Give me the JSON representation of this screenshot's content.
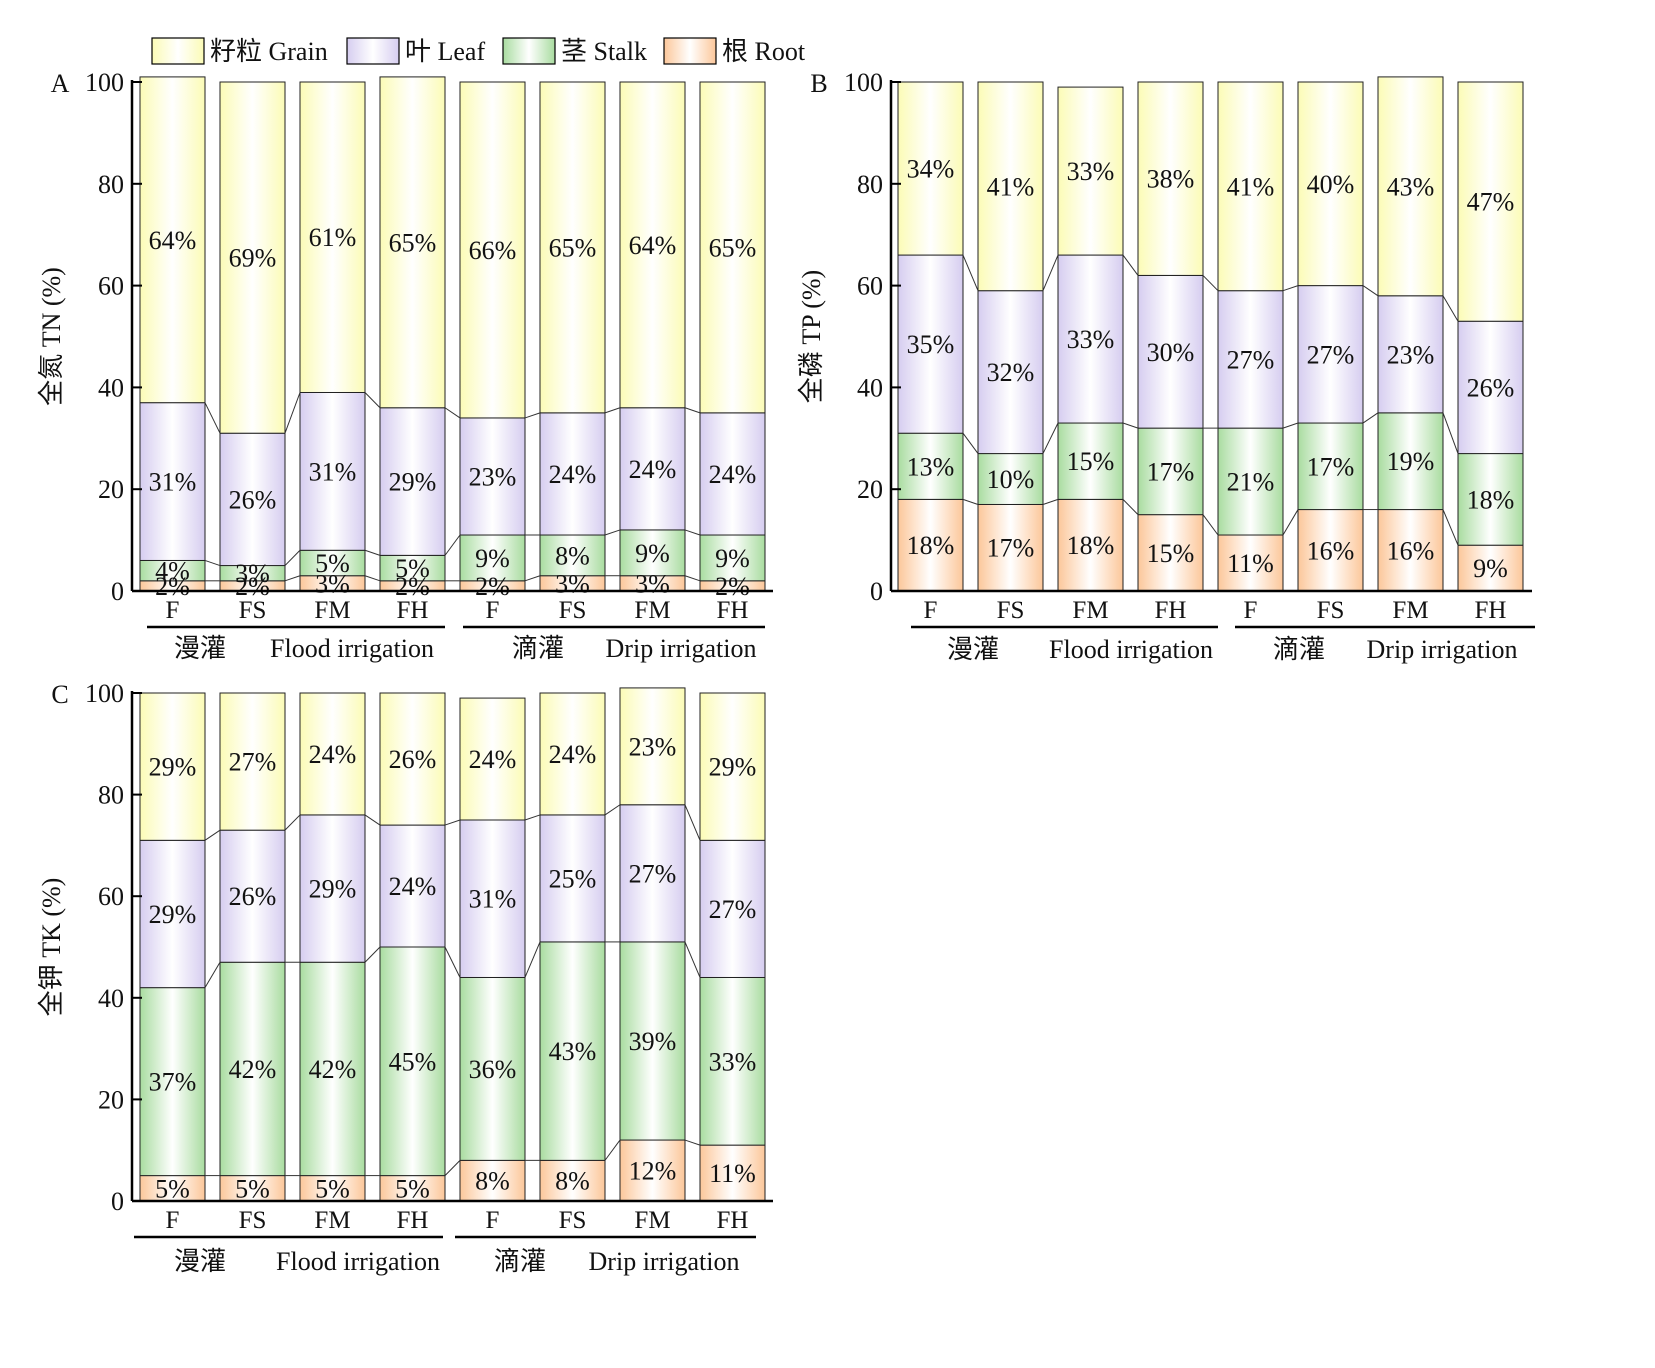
{
  "chart_data": [
    {
      "type": "bar",
      "stacked": true,
      "panel": "A",
      "ylabel": "全氮 TN (%)",
      "ylim": [
        0,
        100
      ],
      "yticks": [
        0,
        20,
        40,
        60,
        80,
        100
      ],
      "categories": [
        "F",
        "FS",
        "FM",
        "FH",
        "F",
        "FS",
        "FM",
        "FH"
      ],
      "groups": [
        {
          "name_cn": "漫灌",
          "name_en": "Flood irrigation",
          "categories": [
            0,
            1,
            2,
            3
          ]
        },
        {
          "name_cn": "滴灌",
          "name_en": "Drip irrigation",
          "categories": [
            4,
            5,
            6,
            7
          ]
        }
      ],
      "series": [
        {
          "name": "根 Root",
          "values": [
            2,
            2,
            3,
            2,
            2,
            3,
            3,
            2
          ],
          "labels": [
            "2%",
            "2%",
            "3%",
            "2%",
            "2%",
            "3%",
            "3%",
            "2%"
          ]
        },
        {
          "name": "茎 Stalk",
          "values": [
            4,
            3,
            5,
            5,
            9,
            8,
            9,
            9
          ],
          "labels": [
            "4%",
            "3%",
            "5%",
            "5%",
            "9%",
            "8%",
            "9%",
            "9%"
          ]
        },
        {
          "name": "叶 Leaf",
          "values": [
            31,
            26,
            31,
            29,
            23,
            24,
            24,
            24
          ],
          "labels": [
            "31%",
            "26%",
            "31%",
            "29%",
            "23%",
            "24%",
            "24%",
            "24%"
          ]
        },
        {
          "name": "籽粒 Grain",
          "values": [
            64,
            69,
            61,
            65,
            66,
            65,
            64,
            65
          ],
          "labels": [
            "64%",
            "69%",
            "61%",
            "65%",
            "66%",
            "65%",
            "64%",
            "65%"
          ]
        }
      ]
    },
    {
      "type": "bar",
      "stacked": true,
      "panel": "B",
      "ylabel": "全磷 TP (%)",
      "ylim": [
        0,
        100
      ],
      "yticks": [
        0,
        20,
        40,
        60,
        80,
        100
      ],
      "categories": [
        "F",
        "FS",
        "FM",
        "FH",
        "F",
        "FS",
        "FM",
        "FH"
      ],
      "groups": [
        {
          "name_cn": "漫灌",
          "name_en": "Flood irrigation",
          "categories": [
            0,
            1,
            2,
            3
          ]
        },
        {
          "name_cn": "滴灌",
          "name_en": "Drip irrigation",
          "categories": [
            4,
            5,
            6,
            7
          ]
        }
      ],
      "series": [
        {
          "name": "根 Root",
          "values": [
            18,
            17,
            18,
            15,
            11,
            16,
            16,
            9
          ],
          "labels": [
            "18%",
            "17%",
            "18%",
            "15%",
            "11%",
            "16%",
            "16%",
            "9%"
          ]
        },
        {
          "name": "茎 Stalk",
          "values": [
            13,
            10,
            15,
            17,
            21,
            17,
            19,
            18
          ],
          "labels": [
            "13%",
            "10%",
            "15%",
            "17%",
            "21%",
            "17%",
            "19%",
            "18%"
          ]
        },
        {
          "name": "叶 Leaf",
          "values": [
            35,
            32,
            33,
            30,
            27,
            27,
            23,
            26
          ],
          "labels": [
            "35%",
            "32%",
            "33%",
            "30%",
            "27%",
            "27%",
            "23%",
            "26%"
          ]
        },
        {
          "name": "籽粒 Grain",
          "values": [
            34,
            41,
            33,
            38,
            41,
            40,
            43,
            47
          ],
          "labels": [
            "34%",
            "41%",
            "33%",
            "38%",
            "41%",
            "40%",
            "43%",
            "47%"
          ]
        }
      ]
    },
    {
      "type": "bar",
      "stacked": true,
      "panel": "C",
      "ylabel": "全钾 TK (%)",
      "ylim": [
        0,
        100
      ],
      "yticks": [
        0,
        20,
        40,
        60,
        80,
        100
      ],
      "categories": [
        "F",
        "FS",
        "FM",
        "FH",
        "F",
        "FS",
        "FM",
        "FH"
      ],
      "groups": [
        {
          "name_cn": "漫灌",
          "name_en": "Flood irrigation",
          "categories": [
            0,
            1,
            2,
            3
          ]
        },
        {
          "name_cn": "滴灌",
          "name_en": "Drip irrigation",
          "categories": [
            4,
            5,
            6,
            7
          ]
        }
      ],
      "series": [
        {
          "name": "根 Root",
          "values": [
            5,
            5,
            5,
            5,
            8,
            8,
            12,
            11
          ],
          "labels": [
            "5%",
            "5%",
            "5%",
            "5%",
            "8%",
            "8%",
            "12%",
            "11%"
          ]
        },
        {
          "name": "茎 Stalk",
          "values": [
            37,
            42,
            42,
            45,
            36,
            43,
            39,
            33
          ],
          "labels": [
            "37%",
            "42%",
            "42%",
            "45%",
            "36%",
            "43%",
            "39%",
            "33%"
          ]
        },
        {
          "name": "叶 Leaf",
          "values": [
            29,
            26,
            29,
            24,
            31,
            25,
            27,
            27
          ],
          "labels": [
            "29%",
            "26%",
            "29%",
            "24%",
            "31%",
            "25%",
            "27%",
            "27%"
          ]
        },
        {
          "name": "籽粒 Grain",
          "values": [
            29,
            27,
            24,
            26,
            24,
            24,
            23,
            29
          ],
          "labels": [
            "29%",
            "27%",
            "24%",
            "26%",
            "24%",
            "24%",
            "23%",
            "29%"
          ]
        }
      ]
    }
  ],
  "legend": {
    "placement": "top-left",
    "entries": [
      {
        "label": "籽粒 Grain",
        "color_top": "#fbfbb6",
        "color_mid": "#ffffff"
      },
      {
        "label": "叶 Leaf",
        "color_top": "#d6cdf0",
        "color_mid": "#ffffff"
      },
      {
        "label": "茎 Stalk",
        "color_top": "#a9dca0",
        "color_mid": "#ffffff"
      },
      {
        "label": "根 Root",
        "color_top": "#fcc79a",
        "color_mid": "#ffffff"
      }
    ]
  },
  "colors": {
    "grain": "#fbfbb6",
    "leaf": "#d6cdf0",
    "stalk": "#a9dca0",
    "root": "#fcc79a",
    "axis": "#000000"
  }
}
